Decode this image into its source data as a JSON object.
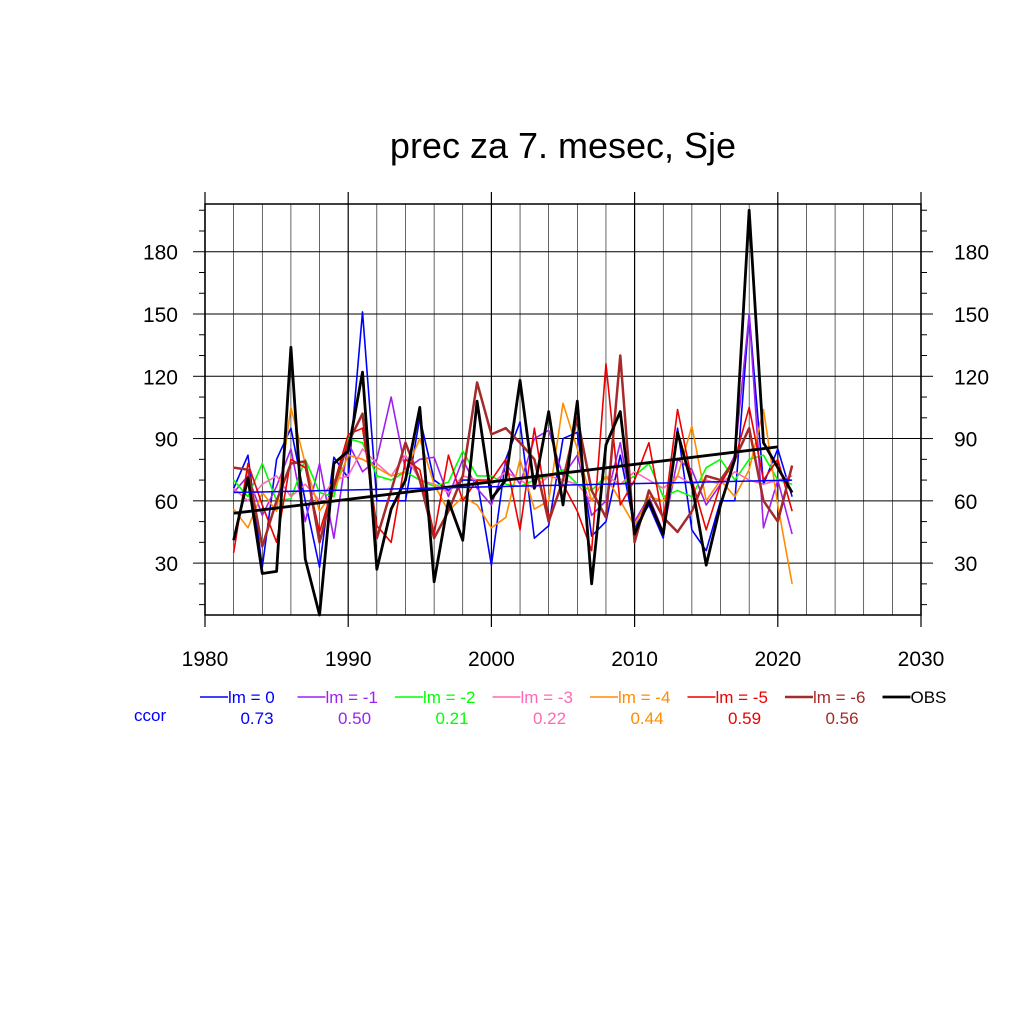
{
  "chart_data": {
    "type": "line",
    "title": "prec za 7. mesec, Sje",
    "xlim": [
      1980,
      2030
    ],
    "ylim": [
      5,
      203
    ],
    "x_ticks": [
      "1980",
      "1990",
      "2000",
      "2010",
      "2020",
      "2030"
    ],
    "y_ticks": [
      "30",
      "60",
      "90",
      "120",
      "150",
      "180"
    ],
    "grid": true,
    "legend_position": "bottom",
    "ccor_label": "ccor",
    "years": [
      1982,
      1983,
      1984,
      1985,
      1986,
      1987,
      1988,
      1989,
      1990,
      1991,
      1992,
      1993,
      1994,
      1995,
      1996,
      1997,
      1998,
      1999,
      2000,
      2001,
      2002,
      2003,
      2004,
      2005,
      2006,
      2007,
      2008,
      2009,
      2010,
      2011,
      2012,
      2013,
      2014,
      2015,
      2016,
      2017,
      2018,
      2019,
      2020,
      2021
    ],
    "series": [
      {
        "name": "lm = 0",
        "color": "#0000ff",
        "ccor": "0.73",
        "width": 1.6,
        "values": [
          66,
          82,
          28,
          80,
          95,
          60,
          28,
          81,
          71,
          151,
          60,
          60,
          60,
          100,
          70,
          65,
          70,
          70,
          29,
          80,
          98,
          42,
          48,
          90,
          93,
          43,
          50,
          82,
          47,
          58,
          42,
          95,
          46,
          36,
          60,
          60,
          150,
          68,
          85,
          62
        ]
      },
      {
        "name": "lm = -1",
        "color": "#a020f0",
        "ccor": "0.50",
        "width": 1.6,
        "values": [
          64,
          72,
          53,
          67,
          85,
          50,
          78,
          42,
          88,
          74,
          80,
          110,
          75,
          80,
          81,
          62,
          80,
          66,
          58,
          78,
          68,
          90,
          94,
          72,
          82,
          53,
          60,
          88,
          50,
          62,
          45,
          80,
          75,
          58,
          68,
          82,
          150,
          47,
          70,
          44
        ]
      },
      {
        "name": "lm = -2",
        "color": "#00ff00",
        "ccor": "0.21",
        "width": 1.6,
        "values": [
          70,
          62,
          78,
          60,
          61,
          80,
          64,
          62,
          90,
          88,
          72,
          70,
          74,
          70,
          67,
          69,
          84,
          72,
          72,
          68,
          67,
          70,
          72,
          75,
          68,
          65,
          72,
          68,
          72,
          78,
          62,
          65,
          62,
          76,
          80,
          70,
          80,
          82,
          70,
          68
        ]
      },
      {
        "name": "lm = -3",
        "color": "#ff69b4",
        "ccor": "0.22",
        "width": 1.6,
        "values": [
          66,
          60,
          68,
          72,
          62,
          68,
          60,
          70,
          72,
          85,
          78,
          72,
          82,
          70,
          68,
          64,
          72,
          70,
          68,
          74,
          70,
          66,
          72,
          70,
          68,
          60,
          72,
          68,
          74,
          70,
          66,
          72,
          68,
          70,
          68,
          74,
          70,
          68,
          70,
          72
        ]
      },
      {
        "name": "lm = -4",
        "color": "#ff8c00",
        "ccor": "0.44",
        "width": 1.6,
        "values": [
          56,
          47,
          64,
          55,
          105,
          78,
          55,
          65,
          82,
          80,
          76,
          72,
          74,
          90,
          68,
          55,
          62,
          58,
          47,
          52,
          80,
          56,
          60,
          107,
          85,
          60,
          72,
          60,
          48,
          62,
          60,
          72,
          96,
          60,
          70,
          62,
          75,
          104,
          58,
          20
        ]
      },
      {
        "name": "lm = -5",
        "color": "#ee0000",
        "ccor": "0.59",
        "width": 1.6,
        "values": [
          35,
          78,
          58,
          40,
          80,
          76,
          45,
          68,
          92,
          95,
          48,
          40,
          80,
          75,
          44,
          82,
          60,
          70,
          70,
          80,
          46,
          95,
          52,
          68,
          55,
          36,
          126,
          58,
          70,
          88,
          50,
          104,
          70,
          46,
          68,
          80,
          105,
          70,
          80,
          55
        ]
      },
      {
        "name": "lm = -6",
        "color": "#a52a2a",
        "ccor": "0.56",
        "width": 2.5,
        "values": [
          76,
          75,
          38,
          60,
          78,
          79,
          40,
          67,
          88,
          102,
          42,
          65,
          88,
          70,
          42,
          55,
          72,
          117,
          92,
          95,
          88,
          80,
          50,
          70,
          100,
          65,
          52,
          130,
          40,
          65,
          52,
          45,
          55,
          72,
          70,
          80,
          95,
          60,
          50,
          77
        ]
      },
      {
        "name": "OBS",
        "color": "#000000",
        "ccor": "",
        "width": 2.8,
        "values": [
          41,
          71,
          25,
          26,
          134,
          32,
          5,
          78,
          84,
          122,
          27,
          56,
          70,
          105,
          21,
          60,
          41,
          108,
          61,
          70,
          118,
          66,
          103,
          58,
          108,
          20,
          87,
          103,
          44,
          60,
          44,
          93,
          68,
          29,
          58,
          80,
          200,
          88,
          76,
          64
        ]
      }
    ],
    "trend_lines": [
      {
        "name": "OBS trend",
        "color": "#000000",
        "x": [
          1982,
          2020
        ],
        "y": [
          54,
          86
        ]
      },
      {
        "name": "lm = 0 trend",
        "color": "#0000ff",
        "x": [
          1982,
          2021
        ],
        "y": [
          64,
          70
        ]
      }
    ]
  }
}
